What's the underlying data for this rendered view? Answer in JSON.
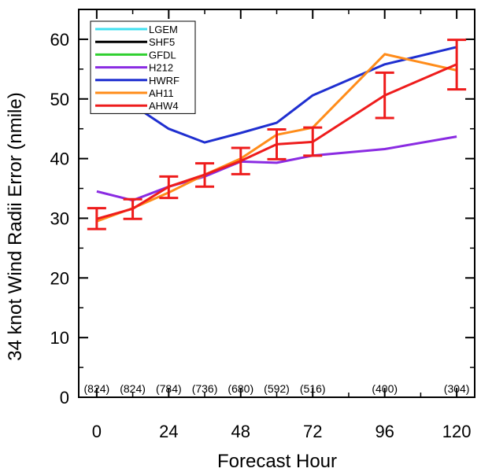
{
  "chart_data": {
    "type": "line",
    "xlabel": "Forecast Hour",
    "ylabel": "34 knot Wind Radii Error (nmile)",
    "xlim": [
      -6,
      126
    ],
    "ylim": [
      0,
      65
    ],
    "xticks": [
      0,
      24,
      48,
      72,
      96,
      120
    ],
    "yticks": [
      0,
      10,
      20,
      30,
      40,
      50,
      60
    ],
    "grid": false,
    "legend_position": "top-left",
    "series": [
      {
        "name": "LGEM",
        "color": "#40e0f0",
        "x": [],
        "y": []
      },
      {
        "name": "SHF5",
        "color": "#000000",
        "x": [],
        "y": []
      },
      {
        "name": "GFDL",
        "color": "#30d030",
        "x": [],
        "y": []
      },
      {
        "name": "H212",
        "color": "#8a2be2",
        "x": [
          0,
          12,
          24,
          36,
          48,
          60,
          72,
          96,
          120
        ],
        "y": [
          34.5,
          33.0,
          35.3,
          37.0,
          39.5,
          39.3,
          40.5,
          41.6,
          43.7
        ]
      },
      {
        "name": "HWRF",
        "color": "#1f2fd0",
        "x": [
          0,
          12,
          24,
          36,
          48,
          60,
          72,
          96,
          120
        ],
        "y": [
          53.0,
          49.0,
          45.0,
          42.7,
          44.3,
          46.0,
          50.6,
          55.8,
          58.7
        ]
      },
      {
        "name": "AH11",
        "color": "#ff8c1a",
        "x": [
          0,
          12,
          24,
          36,
          48,
          60,
          72,
          96,
          120
        ],
        "y": [
          29.5,
          31.7,
          34.3,
          37.3,
          40.0,
          44.0,
          45.2,
          57.5,
          54.8
        ]
      },
      {
        "name": "AHW4",
        "color": "#ee1c1c",
        "x": [
          0,
          12,
          24,
          36,
          48,
          60,
          72,
          96,
          120
        ],
        "y": [
          29.9,
          31.6,
          35.3,
          37.3,
          39.6,
          42.4,
          42.8,
          50.6,
          55.8
        ]
      }
    ],
    "error_bars": {
      "series": "AHW4",
      "x": [
        0,
        12,
        24,
        36,
        48,
        60,
        72,
        96,
        120
      ],
      "low": [
        28.2,
        29.9,
        33.4,
        35.3,
        37.4,
        39.9,
        40.5,
        46.8,
        51.6
      ],
      "high": [
        31.7,
        33.2,
        37.0,
        39.2,
        41.8,
        44.9,
        45.2,
        54.4,
        59.9
      ]
    },
    "sample_counts": [
      {
        "x": 0,
        "label": "(824)"
      },
      {
        "x": 12,
        "label": "(824)"
      },
      {
        "x": 24,
        "label": "(784)"
      },
      {
        "x": 36,
        "label": "(736)"
      },
      {
        "x": 48,
        "label": "(680)"
      },
      {
        "x": 60,
        "label": "(592)"
      },
      {
        "x": 72,
        "label": "(516)"
      },
      {
        "x": 96,
        "label": "(400)"
      },
      {
        "x": 120,
        "label": "(304)"
      }
    ]
  }
}
